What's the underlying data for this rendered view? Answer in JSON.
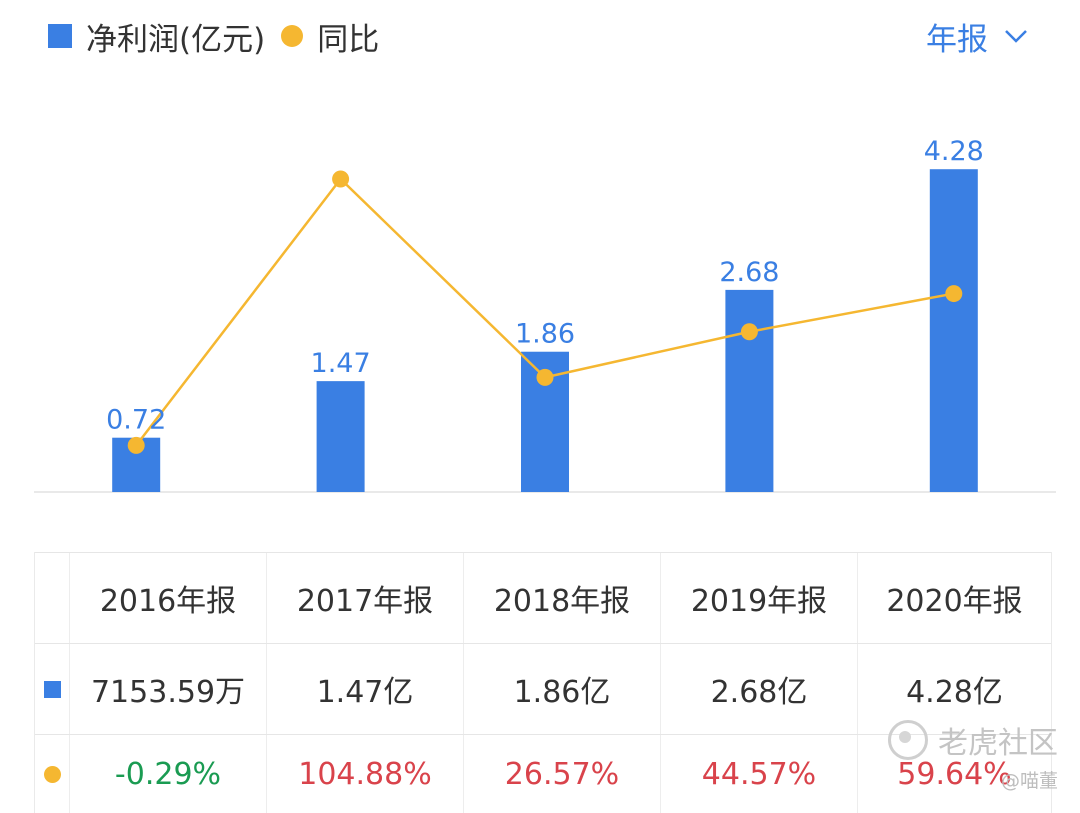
{
  "header": {
    "legend_bar_label": "净利润(亿元)",
    "legend_line_label": "同比",
    "period_selector": "年报"
  },
  "colors": {
    "bar": "#3a7fe3",
    "line": "#f5b731",
    "positive": "#d9434b",
    "negative": "#1a9b52"
  },
  "chart_data": {
    "type": "bar",
    "title": "",
    "xlabel": "",
    "ylabel": "",
    "categories": [
      "2016年报",
      "2017年报",
      "2018年报",
      "2019年报",
      "2020年报"
    ],
    "series": [
      {
        "name": "净利润(亿元)",
        "type": "bar",
        "values": [
          0.72,
          1.47,
          1.86,
          2.68,
          4.28
        ],
        "labels": [
          "0.72",
          "1.47",
          "1.86",
          "2.68",
          "4.28"
        ]
      },
      {
        "name": "同比",
        "type": "line",
        "values": [
          -0.29,
          104.88,
          26.57,
          44.57,
          59.64
        ]
      }
    ],
    "ylim": [
      0,
      4.8
    ],
    "ylim_line": [
      -10,
      140
    ],
    "grid": false,
    "legend": "top-left"
  },
  "table": {
    "headers": [
      "2016年报",
      "2017年报",
      "2018年报",
      "2019年报",
      "2020年报"
    ],
    "profit_row": [
      "7153.59万",
      "1.47亿",
      "1.86亿",
      "2.68亿",
      "4.28亿"
    ],
    "yoy_row": [
      "-0.29%",
      "104.88%",
      "26.57%",
      "44.57%",
      "59.64%"
    ]
  },
  "watermark": {
    "brand": "老虎社区",
    "author": "@喵董"
  }
}
